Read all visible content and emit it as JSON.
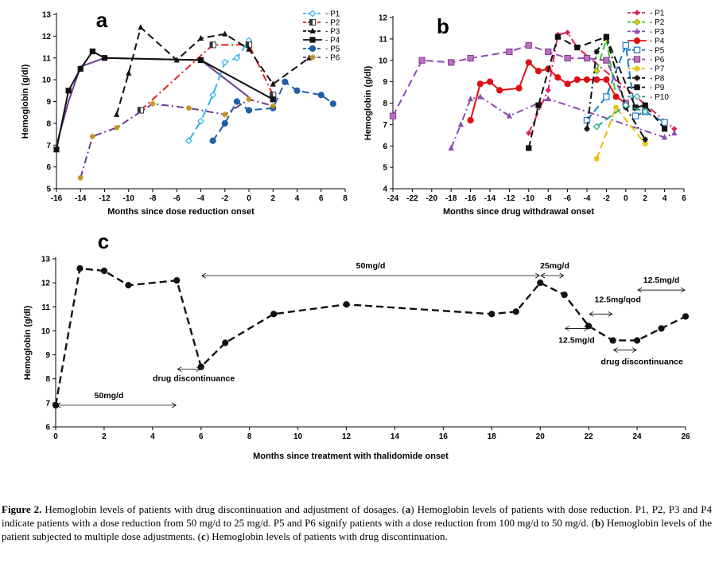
{
  "caption": {
    "label": "Figure 2.",
    "s1": " Hemoglobin levels of patients with drug discontinuation and adjustment of dosages. (",
    "a": "a",
    "s2": ") Hemoglobin levels of patients with dose reduction. P1, P2, P3 and P4 indicate patients with a dose reduction from 50 mg/d to 25 mg/d. P5 and P6 signify patients with a dose reduction from 100 mg/d to 50 mg/d. (",
    "b": "b",
    "s3": ") Hemoglobin levels of the patient subjected to multiple dose adjustments. (",
    "c": "c",
    "s4": ") Hemoglobin levels of patients with drug discontinuation."
  },
  "chart_data": [
    {
      "panel": "a",
      "type": "line",
      "xlabel": "Months since dose reduction onset",
      "ylabel": "Hemoglobin (g/dl)",
      "xlim": [
        -16,
        8
      ],
      "ylim": [
        5,
        13
      ],
      "xticks": [
        -16,
        -14,
        -12,
        -10,
        -8,
        -6,
        -4,
        -2,
        0,
        2,
        4,
        6,
        8
      ],
      "yticks": [
        5,
        6,
        7,
        8,
        9,
        10,
        11,
        12,
        13
      ],
      "legend": "top-right",
      "series": [
        {
          "name": "P1",
          "color": "#33b3e6",
          "dash": "long",
          "marker": "diamond-open",
          "x": [
            -5,
            -4,
            -3,
            -2,
            -1,
            0
          ],
          "y": [
            7.2,
            8.1,
            9.3,
            10.8,
            11.0,
            11.8
          ]
        },
        {
          "name": "P2",
          "color": "#e02020",
          "dash": "dashdot",
          "marker": "square-half",
          "x": [
            -9,
            -3,
            0,
            2
          ],
          "y": [
            8.6,
            11.6,
            11.6,
            9.3
          ]
        },
        {
          "name": "P3",
          "color": "#111111",
          "dash": "dash",
          "marker": "triangle",
          "x": [
            -11,
            -10,
            -9,
            -6,
            -4,
            -2,
            0,
            2,
            5
          ],
          "y": [
            8.4,
            10.3,
            12.4,
            10.9,
            11.9,
            12.1,
            11.4,
            9.8,
            11.0
          ]
        },
        {
          "name": "P4",
          "color": "#111111",
          "dash": "solid",
          "marker": "square",
          "x": [
            -16,
            -15,
            -14,
            -13,
            -12,
            -4,
            2
          ],
          "y": [
            6.8,
            9.5,
            10.5,
            11.3,
            11.0,
            10.9,
            9.1
          ]
        },
        {
          "name": "P5",
          "color": "#1f5fa8",
          "dash": "dash",
          "marker": "circle",
          "x": [
            -3,
            -2,
            -1,
            0,
            2,
            3,
            4,
            6,
            7
          ],
          "y": [
            7.2,
            8.0,
            9.0,
            8.6,
            8.7,
            9.9,
            9.5,
            9.3,
            8.9
          ]
        },
        {
          "name": "P6",
          "color": "#6a3d8f",
          "dash": "dashdot",
          "marker": "star",
          "x": [
            -14,
            -13,
            -11,
            -8,
            -5,
            -2,
            0,
            2
          ],
          "y": [
            5.5,
            7.4,
            7.8,
            8.9,
            8.7,
            8.4,
            9.1,
            8.8
          ]
        }
      ],
      "extra_lines": [
        {
          "color": "#6a3d8f",
          "x": [
            -16,
            -15,
            -14,
            -12,
            -4,
            0
          ],
          "y": [
            7.0,
            9.0,
            10.6,
            11.0,
            10.9,
            9.2
          ]
        }
      ]
    },
    {
      "panel": "b",
      "type": "line",
      "xlabel": "Months since drug withdrawal onset",
      "ylabel": "Hemoglobin (g/dl)",
      "xlim": [
        -24,
        6
      ],
      "ylim": [
        4,
        12
      ],
      "xticks": [
        -24,
        -22,
        -20,
        -18,
        -16,
        -14,
        -12,
        -10,
        -8,
        -6,
        -4,
        -2,
        0,
        2,
        4,
        6
      ],
      "yticks": [
        4,
        5,
        6,
        7,
        8,
        9,
        10,
        11,
        12
      ],
      "legend": "top-right",
      "series": [
        {
          "name": "P1",
          "color": "#e02050",
          "dash": "dashdot",
          "marker": "diamond",
          "x": [
            -10,
            -8,
            -7,
            -6,
            -5,
            5
          ],
          "y": [
            6.6,
            8.6,
            11.2,
            11.3,
            10.6,
            6.8
          ]
        },
        {
          "name": "P2",
          "color": "#33cc33",
          "dash": "dash",
          "marker": "diamond-yellow",
          "x": [
            -3,
            -2,
            -1
          ],
          "y": [
            9.5,
            11.0,
            8.3
          ]
        },
        {
          "name": "P3",
          "color": "#8b4bb0",
          "dash": "dashdot",
          "marker": "triangle",
          "x": [
            -18,
            -17,
            -16,
            -15,
            -12,
            -8,
            4,
            5
          ],
          "y": [
            5.9,
            7.0,
            8.2,
            8.3,
            7.4,
            8.2,
            6.4,
            6.6
          ]
        },
        {
          "name": "P4",
          "color": "#dd1111",
          "dash": "solid",
          "marker": "circle",
          "x": [
            -16,
            -15,
            -14,
            -13,
            -11,
            -10,
            -9,
            -8,
            -7,
            -6,
            -5,
            -4,
            -3,
            -2,
            -1,
            0
          ],
          "y": [
            7.2,
            8.9,
            9.0,
            8.6,
            8.7,
            9.9,
            9.5,
            9.6,
            9.2,
            8.9,
            9.1,
            9.1,
            9.1,
            9.1,
            8.3,
            8.0
          ]
        },
        {
          "name": "P5",
          "color": "#1f7ac4",
          "dash": "dash",
          "marker": "square-open",
          "x": [
            -4,
            -2,
            0,
            1,
            2,
            4
          ],
          "y": [
            7.2,
            8.3,
            10.7,
            7.4,
            7.6,
            7.1
          ]
        },
        {
          "name": "P6",
          "color": "#8b4bb0",
          "dash": "dash",
          "marker": "square-purple",
          "x": [
            -24,
            -21,
            -18,
            -16,
            -12,
            -10,
            -8,
            -6,
            -4,
            -2,
            0
          ],
          "y": [
            7.4,
            10.0,
            9.9,
            10.1,
            10.4,
            10.7,
            10.4,
            10.1,
            10.1,
            10.0,
            8.0
          ]
        },
        {
          "name": "P7",
          "color": "#e8c000",
          "dash": "dash",
          "marker": "star",
          "x": [
            -3,
            -1,
            2
          ],
          "y": [
            5.4,
            7.8,
            6.1
          ]
        },
        {
          "name": "P8",
          "color": "#111111",
          "dash": "dashdot",
          "marker": "star-black",
          "x": [
            -4,
            -3,
            -2,
            0,
            2
          ],
          "y": [
            6.8,
            10.4,
            11.1,
            7.8,
            6.3
          ]
        },
        {
          "name": "P9",
          "color": "#111111",
          "dash": "dash",
          "marker": "square",
          "x": [
            -10,
            -9,
            -7,
            -5,
            -2,
            1,
            2,
            4
          ],
          "y": [
            5.9,
            7.9,
            11.1,
            10.6,
            11.1,
            7.8,
            7.9,
            6.8
          ]
        },
        {
          "name": "P10",
          "color": "#2aa88a",
          "dash": "dash",
          "marker": "diamond-open",
          "x": [
            -3,
            0,
            2
          ],
          "y": [
            6.9,
            7.9,
            7.6
          ]
        }
      ]
    },
    {
      "panel": "c",
      "type": "line",
      "xlabel": "Months since treatment with thalidomide onset",
      "ylabel": "Hemoglobin (g/dl)",
      "xlim": [
        0,
        26
      ],
      "ylim": [
        6,
        13
      ],
      "xticks": [
        0,
        2,
        4,
        6,
        8,
        10,
        12,
        14,
        16,
        18,
        20,
        22,
        24,
        26
      ],
      "yticks": [
        6,
        7,
        8,
        9,
        10,
        11,
        12,
        13
      ],
      "series": [
        {
          "name": "Hemoglobin",
          "color": "#111111",
          "dash": "dash",
          "marker": "circle",
          "x": [
            0,
            1,
            2,
            3,
            5,
            6,
            7,
            9,
            12,
            18,
            19,
            20,
            21,
            22,
            23,
            24,
            25,
            26
          ],
          "y": [
            6.9,
            12.6,
            12.5,
            11.9,
            12.1,
            8.5,
            9.5,
            10.7,
            11.1,
            10.7,
            10.8,
            12.0,
            11.5,
            10.2,
            9.6,
            9.6,
            10.1,
            10.6
          ]
        }
      ],
      "annotations": [
        {
          "text": "50mg/d",
          "x0": 0,
          "x1": 5,
          "y": 6.9,
          "label_x": 2.2,
          "label_y": 7.2
        },
        {
          "text": "50mg/d",
          "x0": 6,
          "x1": 20,
          "y": 12.3,
          "label_x": 13.0,
          "label_y": 12.6
        },
        {
          "text": "drug discontinuance",
          "x0": 5,
          "x1": 6,
          "y": 8.4,
          "label_x": 5.7,
          "label_y": 7.9
        },
        {
          "text": "25mg/d",
          "x0": 20,
          "x1": 21,
          "y": 12.3,
          "label_x": 20.6,
          "label_y": 12.6
        },
        {
          "text": "12.5mg/qod",
          "x0": 22,
          "x1": 23,
          "y": 10.7,
          "label_x": 23.2,
          "label_y": 11.2
        },
        {
          "text": "12.5mg/d",
          "x0": 21,
          "x1": 22,
          "y": 10.1,
          "label_x": 21.5,
          "label_y": 9.5
        },
        {
          "text": "drug discontinuance",
          "x0": 23,
          "x1": 24,
          "y": 9.2,
          "label_x": 24.2,
          "label_y": 8.6
        },
        {
          "text": "12.5mg/d",
          "x0": 24,
          "x1": 26,
          "y": 11.7,
          "label_x": 25.0,
          "label_y": 12.0
        }
      ]
    }
  ]
}
